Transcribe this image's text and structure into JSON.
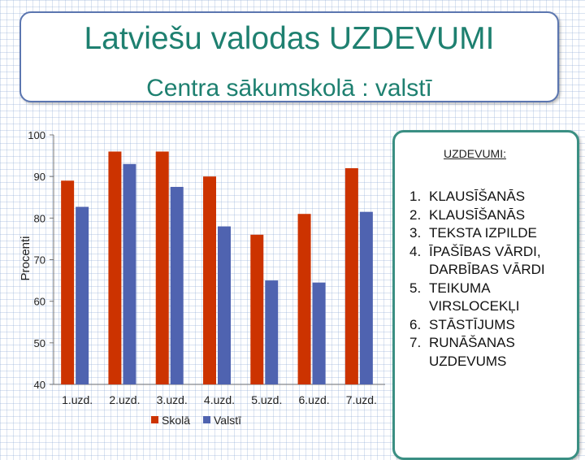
{
  "header": {
    "title": "Latviešu valodas UZDEVUMI",
    "subtitle": "Centra sākumskolā : valstī"
  },
  "chart_data": {
    "type": "bar",
    "title": "",
    "ylabel": "Procenti",
    "xlabel": "",
    "ylim": [
      40,
      100
    ],
    "yticks": [
      40,
      50,
      60,
      70,
      80,
      90,
      100
    ],
    "categories": [
      "1.uzd.",
      "2.uzd.",
      "3.uzd.",
      "4.uzd.",
      "5.uzd.",
      "6.uzd.",
      "7.uzd."
    ],
    "series": [
      {
        "name": "Skolā",
        "color": "#cc3300",
        "values": [
          89,
          96,
          96,
          90,
          76,
          81,
          92
        ]
      },
      {
        "name": "Valstī",
        "color": "#4f63b0",
        "values": [
          82.7,
          93,
          87.5,
          78,
          65,
          64.5,
          81.5
        ]
      }
    ],
    "grid": false,
    "legend": "bottom"
  },
  "tasks": {
    "heading": "UZDEVUMI:",
    "items": [
      {
        "num": "1.",
        "label": "KLAUSĪŠANĀS"
      },
      {
        "num": "2.",
        "label": "KLAUSĪŠANĀS"
      },
      {
        "num": "3.",
        "label": "TEKSTA IZPILDE"
      },
      {
        "num": "4.",
        "label": "ĪPAŠĪBAS VĀRDI, DARBĪBAS VĀRDI"
      },
      {
        "num": "5.",
        "label": "TEIKUMA VIRSLOCEKĻI"
      },
      {
        "num": "6.",
        "label": "STĀSTĪJUMS"
      },
      {
        "num": "7.",
        "label": "RUNĀŠANAS UZDEVUMS"
      }
    ]
  }
}
